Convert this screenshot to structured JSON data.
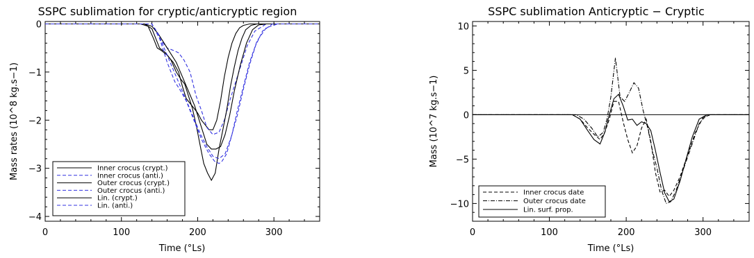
{
  "chart_data": [
    {
      "type": "line",
      "title": "SSPC sublimation for cryptic/anticryptic region",
      "xlabel": "Time (°Ls)",
      "ylabel": "Mass rates (10^8 kg.s−1)",
      "xlim": [
        0,
        360
      ],
      "ylim": [
        -4.1,
        0.05
      ],
      "xticks": [
        0,
        100,
        200,
        300
      ],
      "yticks": [
        0,
        -1,
        -2,
        -3,
        -4
      ],
      "xtick_labels": [
        "0",
        "100",
        "200",
        "300"
      ],
      "ytick_labels": [
        "0",
        "−1",
        "−2",
        "−3",
        "−4"
      ],
      "grid": false,
      "legend_position": "bottom-left",
      "series": [
        {
          "name": "Inner crocus (crypt.)",
          "color": "#000000",
          "dash": "solid",
          "x": [
            0,
            125,
            135,
            142,
            147,
            152,
            160,
            168,
            175,
            180,
            185,
            190,
            195,
            200,
            205,
            210,
            215,
            220,
            225,
            230,
            235,
            240,
            245,
            250,
            255,
            260,
            268,
            275,
            285,
            360
          ],
          "y": [
            0,
            0,
            -0.05,
            -0.3,
            -0.5,
            -0.55,
            -0.65,
            -0.8,
            -1.0,
            -1.3,
            -1.55,
            -1.65,
            -1.75,
            -1.85,
            -2.0,
            -2.1,
            -2.2,
            -2.2,
            -2.0,
            -1.6,
            -1.1,
            -0.7,
            -0.4,
            -0.2,
            -0.08,
            -0.03,
            0,
            0,
            0,
            0
          ]
        },
        {
          "name": "Inner crocus (anti.)",
          "color": "#3030e0",
          "dash": "dashed",
          "x": [
            0,
            140,
            150,
            160,
            168,
            175,
            182,
            190,
            198,
            205,
            212,
            220,
            228,
            235,
            242,
            250,
            258,
            265,
            275,
            290,
            360
          ],
          "y": [
            0,
            0,
            -0.3,
            -0.5,
            -0.55,
            -0.6,
            -0.75,
            -1.0,
            -1.5,
            -1.8,
            -2.15,
            -2.3,
            -2.25,
            -2.0,
            -1.6,
            -1.2,
            -0.8,
            -0.45,
            -0.15,
            0,
            0
          ]
        },
        {
          "name": "Outer crocus (crypt.)",
          "color": "#000000",
          "dash": "solid",
          "x": [
            0,
            130,
            140,
            145,
            150,
            158,
            165,
            172,
            178,
            183,
            188,
            193,
            198,
            203,
            208,
            213,
            218,
            223,
            228,
            233,
            238,
            243,
            248,
            253,
            258,
            263,
            270,
            278,
            290,
            360
          ],
          "y": [
            0,
            0,
            -0.1,
            -0.3,
            -0.5,
            -0.6,
            -0.75,
            -1.0,
            -1.15,
            -1.25,
            -1.5,
            -1.75,
            -2.1,
            -2.5,
            -2.9,
            -3.1,
            -3.25,
            -3.1,
            -2.6,
            -2.2,
            -1.8,
            -1.3,
            -0.9,
            -0.55,
            -0.3,
            -0.12,
            -0.03,
            0,
            0,
            0
          ]
        },
        {
          "name": "Outer crocus (anti.)",
          "color": "#3030e0",
          "dash": "dashed",
          "x": [
            0,
            140,
            150,
            160,
            170,
            178,
            185,
            195,
            205,
            215,
            222,
            228,
            232,
            238,
            245,
            252,
            260,
            268,
            278,
            290,
            305,
            360
          ],
          "y": [
            0,
            0,
            -0.3,
            -0.8,
            -1.2,
            -1.4,
            -1.6,
            -2.0,
            -2.4,
            -2.7,
            -2.85,
            -2.9,
            -2.85,
            -2.7,
            -2.3,
            -1.8,
            -1.3,
            -0.8,
            -0.35,
            -0.08,
            0,
            0
          ]
        },
        {
          "name": "Lin. (crypt.)",
          "color": "#000000",
          "dash": "solid",
          "x": [
            0,
            130,
            140,
            148,
            156,
            164,
            172,
            180,
            188,
            196,
            204,
            212,
            218,
            224,
            230,
            236,
            242,
            248,
            256,
            264,
            272,
            280,
            290,
            360
          ],
          "y": [
            0,
            0,
            -0.05,
            -0.2,
            -0.4,
            -0.6,
            -0.8,
            -1.1,
            -1.4,
            -1.7,
            -2.1,
            -2.5,
            -2.6,
            -2.6,
            -2.55,
            -2.3,
            -1.9,
            -1.4,
            -0.85,
            -0.4,
            -0.12,
            -0.02,
            0,
            0
          ]
        },
        {
          "name": "Lin. (anti.)",
          "color": "#3030e0",
          "dash": "dashed",
          "x": [
            0,
            140,
            148,
            156,
            164,
            172,
            180,
            188,
            196,
            204,
            212,
            220,
            228,
            236,
            244,
            252,
            260,
            268,
            276,
            285,
            298,
            360
          ],
          "y": [
            0,
            0,
            -0.2,
            -0.5,
            -0.8,
            -1.1,
            -1.4,
            -1.7,
            -2.0,
            -2.3,
            -2.55,
            -2.75,
            -2.8,
            -2.7,
            -2.35,
            -1.9,
            -1.35,
            -0.85,
            -0.45,
            -0.15,
            0,
            0
          ]
        }
      ]
    },
    {
      "type": "line",
      "title": "SSPC sublimation Anticryptic − Cryptic",
      "xlabel": "Time (°Ls)",
      "ylabel": "Mass (10^7 kg.s−1)",
      "xlim": [
        0,
        360
      ],
      "ylim": [
        -12,
        10.5
      ],
      "xticks": [
        0,
        100,
        200,
        300
      ],
      "yticks": [
        10,
        5,
        0,
        -5,
        -10
      ],
      "xtick_labels": [
        "0",
        "100",
        "200",
        "300"
      ],
      "ytick_labels": [
        "10",
        "5",
        "0",
        "−5",
        "−10"
      ],
      "grid": false,
      "zero_line": true,
      "legend_position": "bottom-left",
      "series": [
        {
          "name": "Inner crocus date",
          "color": "#000000",
          "dash": "dashed",
          "x": [
            0,
            130,
            140,
            150,
            158,
            166,
            172,
            178,
            184,
            190,
            196,
            202,
            208,
            214,
            220,
            226,
            232,
            238,
            244,
            250,
            256,
            262,
            270,
            280,
            290,
            300,
            310,
            360
          ],
          "y": [
            0,
            0,
            -0.5,
            -1.5,
            -2.2,
            -2.8,
            -2.0,
            -0.5,
            1.5,
            1.5,
            -0.8,
            -2.8,
            -4.3,
            -3.5,
            -1.5,
            -0.5,
            -3.0,
            -6.5,
            -8.7,
            -8.5,
            -9.2,
            -8.5,
            -7.0,
            -4.5,
            -2.0,
            -0.3,
            0,
            0
          ]
        },
        {
          "name": "Outer crocus date",
          "color": "#000000",
          "dash": "dashdot",
          "x": [
            0,
            135,
            145,
            155,
            163,
            170,
            175,
            180,
            186,
            192,
            198,
            204,
            210,
            216,
            222,
            228,
            234,
            240,
            246,
            252,
            258,
            265,
            275,
            285,
            295,
            305,
            360
          ],
          "y": [
            0,
            0,
            -0.5,
            -1.5,
            -2.5,
            -2.0,
            -0.5,
            2.0,
            6.4,
            2.0,
            1.5,
            2.5,
            3.6,
            3.0,
            0.5,
            -1.5,
            -4.0,
            -6.0,
            -8.5,
            -10.0,
            -9.8,
            -8.5,
            -6.0,
            -3.5,
            -1.0,
            0,
            0
          ]
        },
        {
          "name": "Lin. surf. prop.",
          "color": "#000000",
          "dash": "solid",
          "x": [
            0,
            130,
            140,
            150,
            158,
            166,
            172,
            178,
            184,
            190,
            196,
            202,
            208,
            214,
            220,
            226,
            232,
            238,
            244,
            250,
            256,
            262,
            270,
            278,
            286,
            295,
            305,
            360
          ],
          "y": [
            0,
            0,
            -0.5,
            -1.8,
            -2.8,
            -3.3,
            -2.0,
            0,
            1.8,
            2.3,
            1.0,
            -0.6,
            -0.5,
            -1.2,
            -0.8,
            -1.0,
            -1.8,
            -4.0,
            -6.5,
            -8.8,
            -9.8,
            -9.5,
            -7.5,
            -5.0,
            -2.5,
            -0.5,
            0,
            0
          ]
        }
      ]
    }
  ]
}
